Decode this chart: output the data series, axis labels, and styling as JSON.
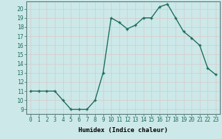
{
  "x": [
    0,
    1,
    2,
    3,
    4,
    5,
    6,
    7,
    8,
    9,
    10,
    11,
    12,
    13,
    14,
    15,
    16,
    17,
    18,
    19,
    20,
    21,
    22,
    23
  ],
  "y": [
    11,
    11,
    11,
    11,
    10,
    9,
    9,
    9,
    10,
    13,
    19,
    18.5,
    17.8,
    18.2,
    19,
    19,
    20.2,
    20.5,
    19,
    17.5,
    16.8,
    16,
    13.5,
    12.8
  ],
  "xlabel": "Humidex (Indice chaleur)",
  "xlim": [
    -0.5,
    23.5
  ],
  "ylim": [
    8.5,
    20.8
  ],
  "yticks": [
    9,
    10,
    11,
    12,
    13,
    14,
    15,
    16,
    17,
    18,
    19,
    20
  ],
  "xticks": [
    0,
    1,
    2,
    3,
    4,
    5,
    6,
    7,
    8,
    9,
    10,
    11,
    12,
    13,
    14,
    15,
    16,
    17,
    18,
    19,
    20,
    21,
    22,
    23
  ],
  "line_color": "#1a6b5a",
  "marker": "+",
  "marker_size": 3.5,
  "bg_color": "#cce8e8",
  "grid_color_minor": "#d8c8c8",
  "grid_color_major": "#c8b8b8",
  "xlabel_fontsize": 6.5,
  "tick_fontsize": 5.5,
  "line_width": 1.0
}
